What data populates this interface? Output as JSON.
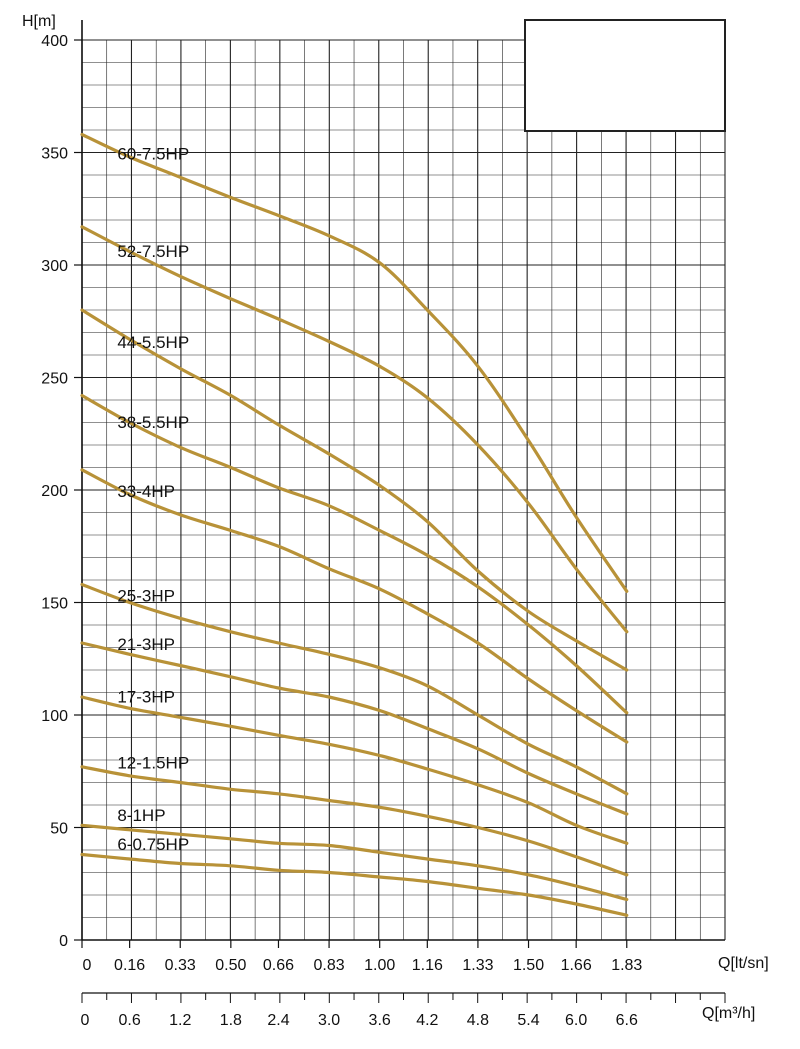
{
  "chart_data": {
    "type": "line",
    "title": "",
    "ylabel": "H[m]",
    "xlabel": "Q[lt/sn]",
    "x2label": "Q[m³/h]",
    "ylim": [
      0,
      400
    ],
    "xlim": [
      0,
      2.16
    ],
    "grid": true,
    "legend": "inline labels",
    "colors": {
      "curve": "#b89238",
      "grid": "#222222"
    },
    "y_ticks": [
      "0",
      "50",
      "100",
      "150",
      "200",
      "250",
      "300",
      "350",
      "400"
    ],
    "x_ticks": [
      "0",
      "0.16",
      "0.33",
      "0.50",
      "0.66",
      "0.83",
      "1.00",
      "1.16",
      "1.33",
      "1.50",
      "1.66",
      "1.83"
    ],
    "x2_ticks": [
      "0",
      "0.6",
      "1.2",
      "1.8",
      "2.4",
      "3.0",
      "3.6",
      "4.2",
      "4.8",
      "5.4",
      "6.0",
      "6.6"
    ],
    "x": [
      0,
      0.16,
      0.33,
      0.5,
      0.66,
      0.83,
      1.0,
      1.16,
      1.33,
      1.5,
      1.66,
      1.83
    ],
    "series": [
      {
        "name": "60-7.5HP",
        "values": [
          358,
          348,
          339,
          330,
          322,
          313,
          301,
          280,
          255,
          222,
          188,
          155
        ]
      },
      {
        "name": "52-7.5HP",
        "values": [
          317,
          306,
          295,
          285,
          276,
          266,
          255,
          241,
          220,
          194,
          165,
          137
        ]
      },
      {
        "name": "44-5.5HP",
        "values": [
          280,
          267,
          254,
          242,
          229,
          216,
          202,
          186,
          164,
          146,
          133,
          120
        ]
      },
      {
        "name": "38-5.5HP",
        "values": [
          242,
          230,
          219,
          210,
          201,
          193,
          182,
          171,
          157,
          140,
          122,
          101
        ]
      },
      {
        "name": "33-4HP",
        "values": [
          209,
          198,
          189,
          182,
          175,
          165,
          156,
          145,
          132,
          116,
          102,
          88
        ]
      },
      {
        "name": "25-3HP",
        "values": [
          158,
          150,
          143,
          137,
          132,
          127,
          121,
          113,
          100,
          87,
          77,
          65
        ]
      },
      {
        "name": "21-3HP",
        "values": [
          132,
          127,
          122,
          117,
          112,
          108,
          102,
          94,
          85,
          74,
          65,
          56
        ]
      },
      {
        "name": "17-3HP",
        "values": [
          108,
          103,
          99,
          95,
          91,
          87,
          82,
          76,
          69,
          61,
          51,
          43
        ]
      },
      {
        "name": "12-1.5HP",
        "values": [
          77,
          73,
          70,
          67,
          65,
          62,
          59,
          55,
          50,
          44,
          37,
          29
        ]
      },
      {
        "name": "8-1HP",
        "values": [
          51,
          49,
          47,
          45,
          43,
          42,
          39,
          36,
          33,
          29,
          24,
          18
        ]
      },
      {
        "name": "6-0.75HP",
        "values": [
          38,
          36,
          34,
          33,
          31,
          30,
          28,
          26,
          23,
          20,
          16,
          11
        ]
      }
    ]
  }
}
